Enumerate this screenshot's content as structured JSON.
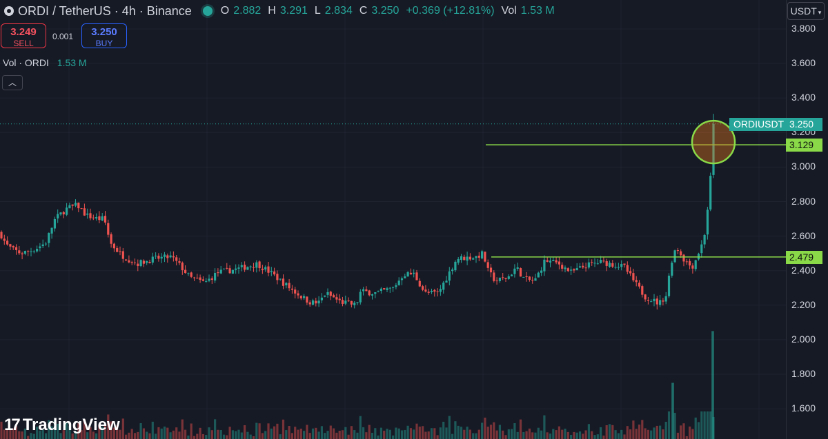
{
  "header": {
    "title": "ORDI / TetherUS · 4h · Binance",
    "open_label": "O",
    "open": "2.882",
    "high_label": "H",
    "high": "3.291",
    "low_label": "L",
    "low": "2.834",
    "close_label": "C",
    "close": "3.250",
    "change": "+0.369 (+12.81%)",
    "vol_label": "Vol",
    "vol": "1.53 M"
  },
  "trade": {
    "sell_price": "3.249",
    "sell_label": "SELL",
    "lot": "0.001",
    "buy_price": "3.250",
    "buy_label": "BUY"
  },
  "volume_indicator": {
    "label": "Vol · ORDI",
    "value": "1.53 M"
  },
  "currency_button": "USDT",
  "price_scale": [
    "3.800",
    "3.600",
    "3.400",
    "3.200",
    "3.000",
    "2.800",
    "2.600",
    "2.400",
    "2.200",
    "2.000",
    "1.800",
    "1.600"
  ],
  "tags": {
    "symbol": "ORDIUSDT",
    "current_price": "3.250",
    "line_upper": "3.129",
    "line_lower": "2.479"
  },
  "brand": {
    "name": "TradingView",
    "mark": "17"
  },
  "colors": {
    "up": "#26a69a",
    "down": "#ef5350",
    "annotation": "#89d948",
    "background": "#161a25"
  },
  "icons": {
    "collapse": "chevron-up-icon",
    "dropdown": "chevron-down-icon",
    "live": "live-dot-icon"
  },
  "chart_data": {
    "type": "candlestick",
    "symbol": "ORDI / TetherUS",
    "interval": "4h",
    "exchange": "Binance",
    "ylim": [
      1.5,
      3.85
    ],
    "y_ticks": [
      1.6,
      1.8,
      2.0,
      2.2,
      2.4,
      2.6,
      2.8,
      3.0,
      3.2,
      3.4,
      3.6,
      3.8
    ],
    "last_price": 3.25,
    "horizontal_lines": [
      3.129,
      2.479
    ],
    "highlight_circle_price": 3.129,
    "close_path": [
      [
        0,
        2.62
      ],
      [
        9,
        2.55
      ],
      [
        19,
        2.52
      ],
      [
        31,
        2.5
      ],
      [
        48,
        2.52
      ],
      [
        66,
        2.56
      ],
      [
        80,
        2.7
      ],
      [
        97,
        2.76
      ],
      [
        112,
        2.78
      ],
      [
        125,
        2.72
      ],
      [
        141,
        2.7
      ],
      [
        151,
        2.7
      ],
      [
        160,
        2.56
      ],
      [
        176,
        2.49
      ],
      [
        198,
        2.44
      ],
      [
        225,
        2.47
      ],
      [
        248,
        2.48
      ],
      [
        263,
        2.42
      ],
      [
        275,
        2.36
      ],
      [
        297,
        2.33
      ],
      [
        316,
        2.39
      ],
      [
        345,
        2.41
      ],
      [
        373,
        2.44
      ],
      [
        395,
        2.38
      ],
      [
        410,
        2.33
      ],
      [
        433,
        2.26
      ],
      [
        448,
        2.22
      ],
      [
        461,
        2.21
      ],
      [
        472,
        2.27
      ],
      [
        493,
        2.22
      ],
      [
        516,
        2.2
      ],
      [
        523,
        2.28
      ],
      [
        545,
        2.27
      ],
      [
        570,
        2.3
      ],
      [
        585,
        2.38
      ],
      [
        600,
        2.38
      ],
      [
        616,
        2.27
      ],
      [
        635,
        2.27
      ],
      [
        650,
        2.38
      ],
      [
        662,
        2.47
      ],
      [
        690,
        2.48
      ],
      [
        700,
        2.5
      ],
      [
        707,
        2.4
      ],
      [
        718,
        2.34
      ],
      [
        736,
        2.36
      ],
      [
        748,
        2.42
      ],
      [
        760,
        2.35
      ],
      [
        775,
        2.34
      ],
      [
        790,
        2.46
      ],
      [
        810,
        2.44
      ],
      [
        828,
        2.39
      ],
      [
        850,
        2.43
      ],
      [
        870,
        2.45
      ],
      [
        885,
        2.44
      ],
      [
        905,
        2.42
      ],
      [
        920,
        2.33
      ],
      [
        935,
        2.25
      ],
      [
        955,
        2.21
      ],
      [
        966,
        2.26
      ],
      [
        972,
        2.44
      ],
      [
        980,
        2.54
      ],
      [
        992,
        2.46
      ],
      [
        1003,
        2.42
      ],
      [
        1010,
        2.48
      ],
      [
        1020,
        2.58
      ],
      [
        1025,
        2.74
      ],
      [
        1030,
        2.95
      ],
      [
        1034,
        3.25
      ]
    ],
    "volume_peaks": [
      [
        975,
        1.75
      ],
      [
        1033,
        2.05
      ]
    ]
  }
}
